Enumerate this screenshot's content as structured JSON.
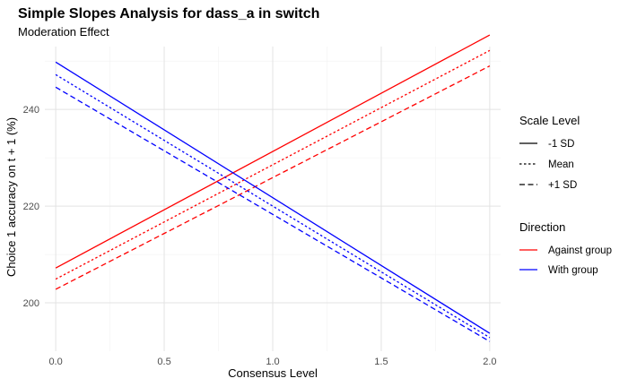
{
  "chart_data": {
    "type": "line",
    "title": "Simple Slopes Analysis for dass_a in switch",
    "subtitle": "Moderation Effect",
    "xlabel": "Consensus Level",
    "ylabel": "Choice 1 accuracy on t + 1 (%)",
    "xlim": [
      -0.05,
      2.05
    ],
    "ylim": [
      190,
      253
    ],
    "xticks": [
      0.0,
      0.5,
      1.0,
      1.5,
      2.0
    ],
    "xtick_labels": [
      "0.0",
      "0.5",
      "1.0",
      "1.5",
      "2.0"
    ],
    "yticks": [
      200,
      220,
      240
    ],
    "ytick_labels": [
      "200",
      "220",
      "240"
    ],
    "grid": true,
    "legend_position": "right",
    "legends": [
      {
        "title": "Scale Level",
        "entries": [
          {
            "label": "-1 SD",
            "linetype": "solid"
          },
          {
            "label": "Mean",
            "linetype": "dotted"
          },
          {
            "label": "+1 SD",
            "linetype": "dashed"
          }
        ]
      },
      {
        "title": "Direction",
        "entries": [
          {
            "label": "Against group",
            "color": "#ff0000"
          },
          {
            "label": "With group",
            "color": "#0000ff"
          }
        ]
      }
    ],
    "series": [
      {
        "direction": "Against group",
        "scale": "-1 SD",
        "color": "#ff0000",
        "linetype": "solid",
        "x": [
          0,
          2
        ],
        "y": [
          207.2,
          255.4
        ]
      },
      {
        "direction": "Against group",
        "scale": "Mean",
        "color": "#ff0000",
        "linetype": "dotted",
        "x": [
          0,
          2
        ],
        "y": [
          204.9,
          252.2
        ]
      },
      {
        "direction": "Against group",
        "scale": "+1 SD",
        "color": "#ff0000",
        "linetype": "dashed",
        "x": [
          0,
          2
        ],
        "y": [
          202.8,
          249.0
        ]
      },
      {
        "direction": "With group",
        "scale": "-1 SD",
        "color": "#0000ff",
        "linetype": "solid",
        "x": [
          0,
          2
        ],
        "y": [
          249.8,
          193.7
        ]
      },
      {
        "direction": "With group",
        "scale": "Mean",
        "color": "#0000ff",
        "linetype": "dotted",
        "x": [
          0,
          2
        ],
        "y": [
          247.2,
          192.8
        ]
      },
      {
        "direction": "With group",
        "scale": "+1 SD",
        "color": "#0000ff",
        "linetype": "dashed",
        "x": [
          0,
          2
        ],
        "y": [
          244.6,
          192.0
        ]
      }
    ]
  }
}
